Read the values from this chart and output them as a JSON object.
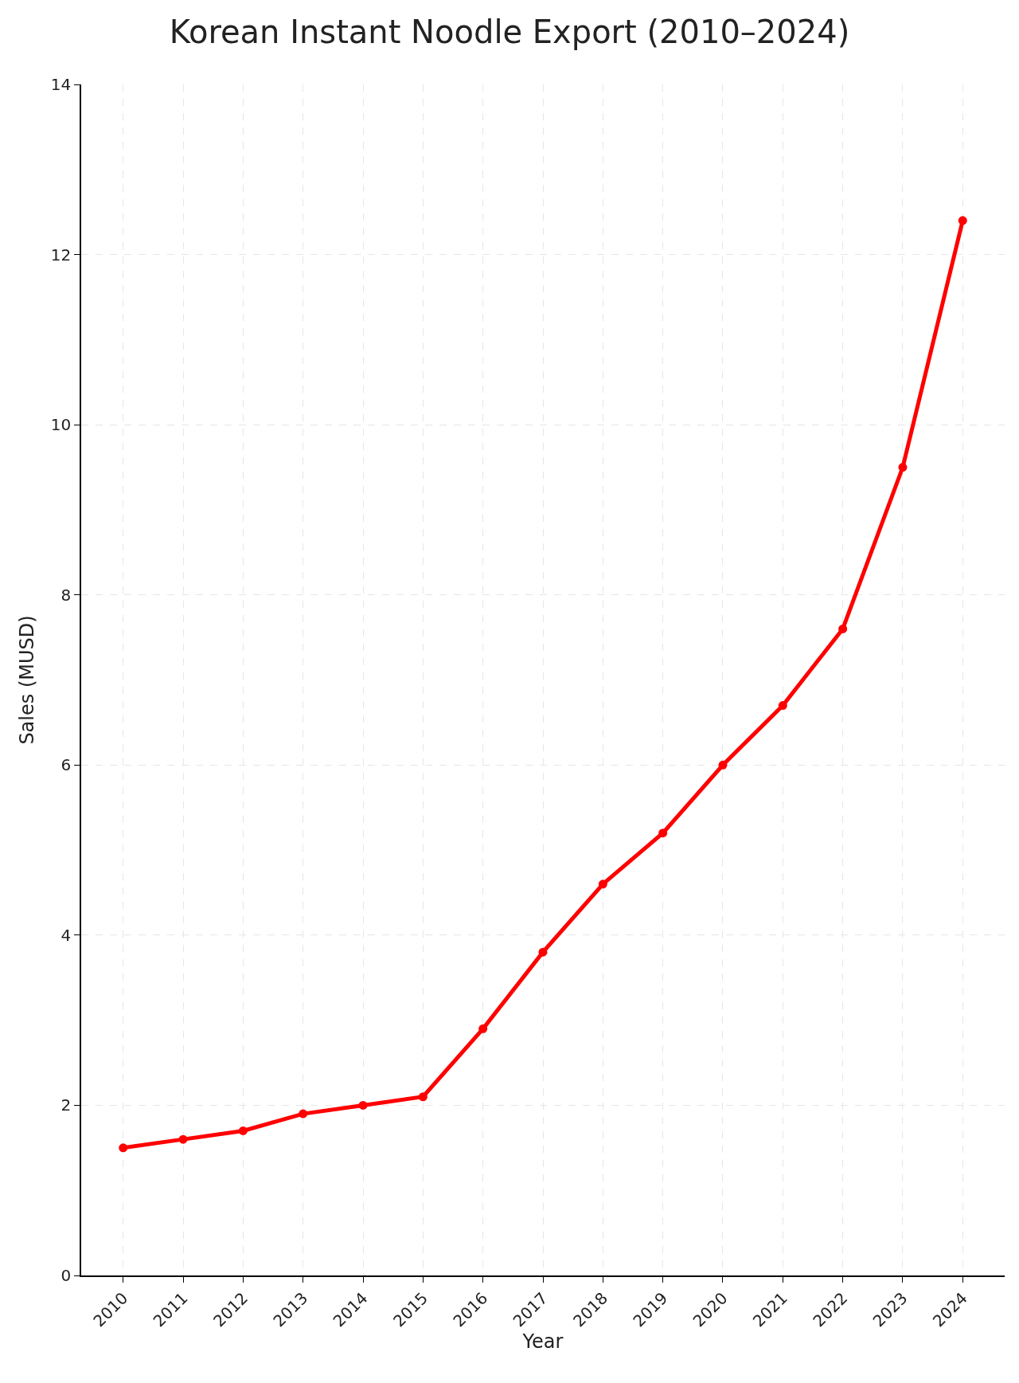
{
  "chart_data": {
    "type": "line",
    "title": "Korean Instant Noodle Export (2010–2024)",
    "xlabel": "Year",
    "ylabel": "Sales (MUSD)",
    "categories": [
      "2010",
      "2011",
      "2012",
      "2013",
      "2014",
      "2015",
      "2016",
      "2017",
      "2018",
      "2019",
      "2020",
      "2021",
      "2022",
      "2023",
      "2024"
    ],
    "series": [
      {
        "color": "#ff0000",
        "values": [
          1.5,
          1.6,
          1.7,
          1.9,
          2.0,
          2.1,
          2.9,
          3.8,
          4.6,
          5.2,
          6.0,
          6.7,
          7.6,
          9.5,
          12.4
        ]
      }
    ],
    "ylim": [
      0,
      14
    ],
    "yticks": [
      0,
      2,
      4,
      6,
      8,
      10,
      12,
      14
    ],
    "grid": true,
    "marker": "circle",
    "line_style": "solid"
  }
}
